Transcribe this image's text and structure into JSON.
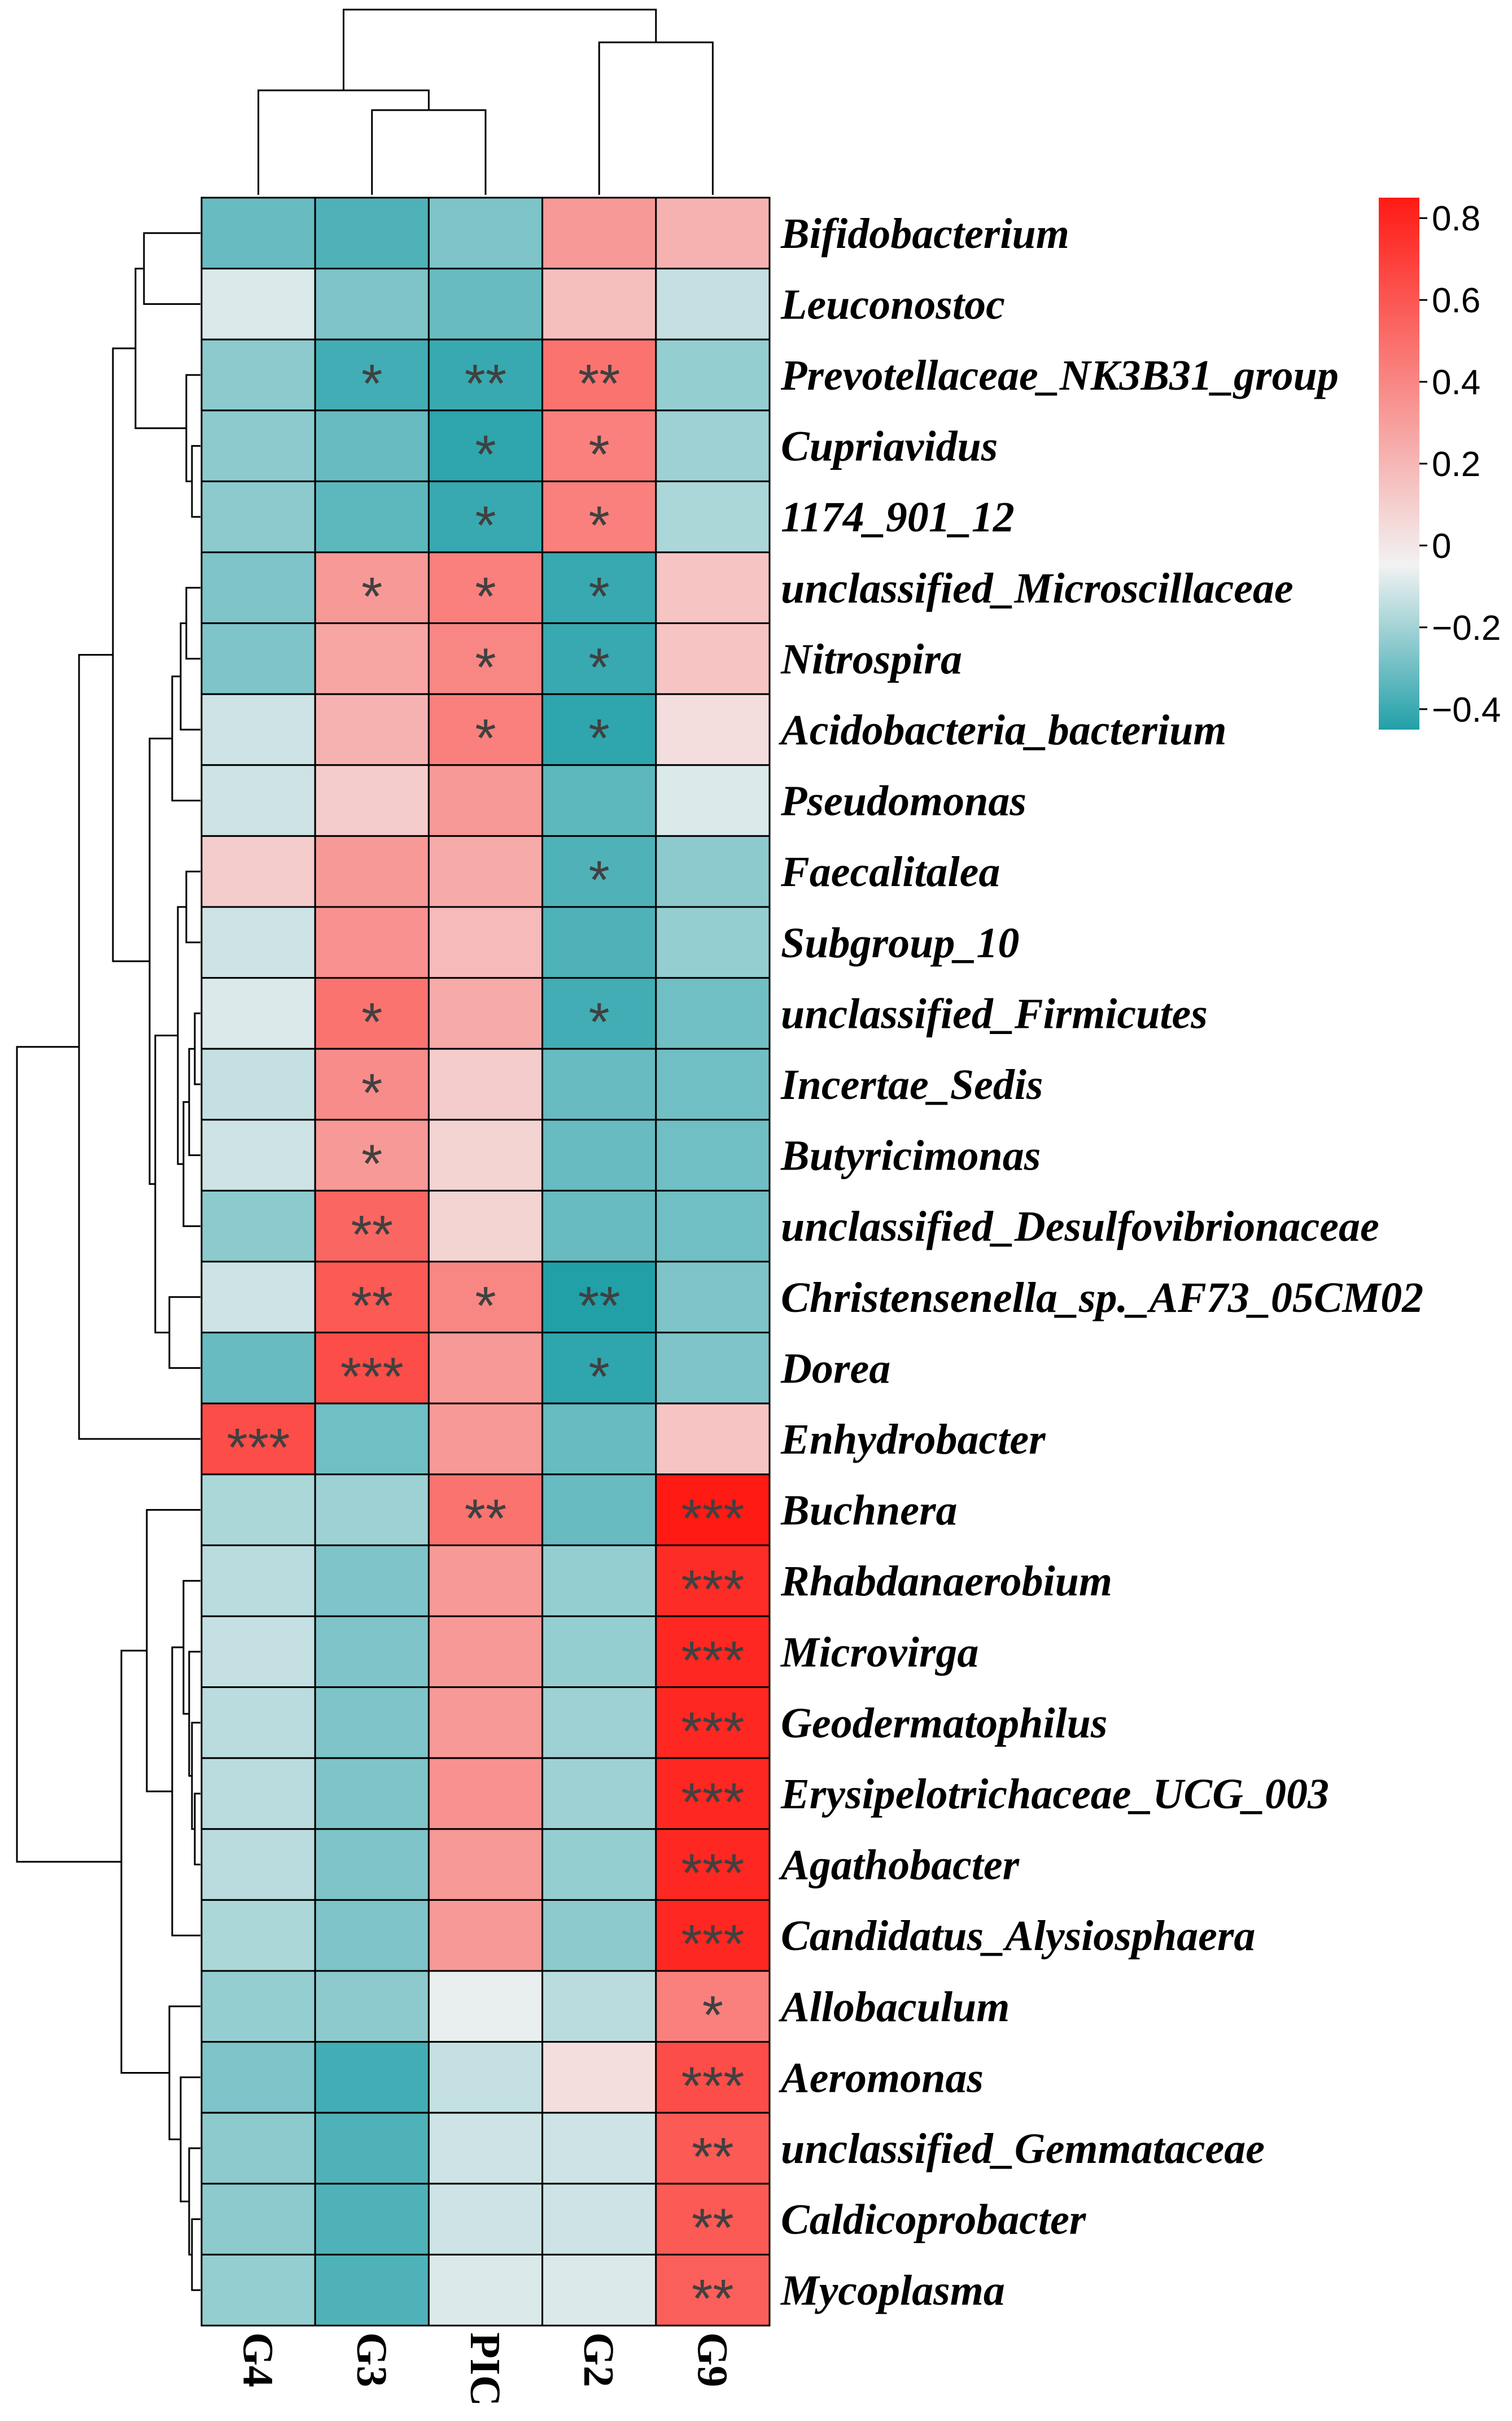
{
  "chart_data": {
    "type": "heatmap",
    "title": "",
    "columns": [
      "G4",
      "G3",
      "PIC",
      "G2",
      "G9"
    ],
    "rows": [
      {
        "name": "Bifidobacterium",
        "values": [
          -0.3,
          -0.35,
          -0.25,
          0.35,
          0.25
        ],
        "sig": [
          "",
          "",
          "",
          "",
          ""
        ]
      },
      {
        "name": "Leuconostoc",
        "values": [
          -0.05,
          -0.25,
          -0.3,
          0.2,
          -0.1
        ],
        "sig": [
          "",
          "",
          "",
          "",
          ""
        ]
      },
      {
        "name": "Prevotellaceae_NK3B31_group",
        "values": [
          -0.22,
          -0.38,
          -0.4,
          0.5,
          -0.2
        ],
        "sig": [
          "",
          "*",
          "**",
          "**",
          ""
        ]
      },
      {
        "name": "Cupriavidus",
        "values": [
          -0.22,
          -0.3,
          -0.42,
          0.45,
          -0.18
        ],
        "sig": [
          "",
          "",
          "*",
          "*",
          ""
        ]
      },
      {
        "name": "1174_901_12",
        "values": [
          -0.22,
          -0.32,
          -0.4,
          0.45,
          -0.15
        ],
        "sig": [
          "",
          "",
          "*",
          "*",
          ""
        ]
      },
      {
        "name": "unclassified_Microscillaceae",
        "values": [
          -0.25,
          0.35,
          0.45,
          -0.4,
          0.18
        ],
        "sig": [
          "",
          "*",
          "*",
          "*",
          ""
        ]
      },
      {
        "name": "Nitrospira",
        "values": [
          -0.25,
          0.3,
          0.42,
          -0.4,
          0.18
        ],
        "sig": [
          "",
          "",
          "*",
          "*",
          ""
        ]
      },
      {
        "name": "Acidobacteria_bacterium",
        "values": [
          -0.08,
          0.25,
          0.45,
          -0.42,
          0.08
        ],
        "sig": [
          "",
          "",
          "*",
          "*",
          ""
        ]
      },
      {
        "name": "Pseudomonas",
        "values": [
          -0.08,
          0.15,
          0.35,
          -0.32,
          -0.05
        ],
        "sig": [
          "",
          "",
          "",
          "",
          ""
        ]
      },
      {
        "name": "Faecalitalea",
        "values": [
          0.15,
          0.35,
          0.28,
          -0.35,
          -0.22
        ],
        "sig": [
          "",
          "",
          "",
          "*",
          ""
        ]
      },
      {
        "name": "Subgroup_10",
        "values": [
          -0.08,
          0.38,
          0.22,
          -0.35,
          -0.2
        ],
        "sig": [
          "",
          "",
          "",
          "",
          ""
        ]
      },
      {
        "name": "unclassified_Firmicutes",
        "values": [
          -0.05,
          0.5,
          0.28,
          -0.38,
          -0.28
        ],
        "sig": [
          "",
          "*",
          "",
          "*",
          ""
        ]
      },
      {
        "name": "Incertae_Sedis",
        "values": [
          -0.1,
          0.4,
          0.15,
          -0.3,
          -0.28
        ],
        "sig": [
          "",
          "*",
          "",
          "",
          ""
        ]
      },
      {
        "name": "Butyricimonas",
        "values": [
          -0.08,
          0.35,
          0.12,
          -0.3,
          -0.28
        ],
        "sig": [
          "",
          "*",
          "",
          "",
          ""
        ]
      },
      {
        "name": "unclassified_Desulfovibrionaceae",
        "values": [
          -0.22,
          0.55,
          0.12,
          -0.3,
          -0.28
        ],
        "sig": [
          "",
          "**",
          "",
          "",
          ""
        ]
      },
      {
        "name": "Christensenella_sp._AF73_05CM02",
        "values": [
          -0.08,
          0.6,
          0.42,
          -0.45,
          -0.25
        ],
        "sig": [
          "",
          "**",
          "*",
          "**",
          ""
        ]
      },
      {
        "name": "Dorea",
        "values": [
          -0.3,
          0.65,
          0.35,
          -0.42,
          -0.25
        ],
        "sig": [
          "",
          "***",
          "",
          "*",
          ""
        ]
      },
      {
        "name": "Enhydrobacter",
        "values": [
          0.65,
          -0.28,
          0.35,
          -0.3,
          0.18
        ],
        "sig": [
          "***",
          "",
          "",
          "",
          ""
        ]
      },
      {
        "name": "Buchnera",
        "values": [
          -0.15,
          -0.18,
          0.5,
          -0.3,
          0.85
        ],
        "sig": [
          "",
          "",
          "**",
          "",
          "***"
        ]
      },
      {
        "name": "Rhabdanaerobium",
        "values": [
          -0.12,
          -0.25,
          0.35,
          -0.2,
          0.78
        ],
        "sig": [
          "",
          "",
          "",
          "",
          "***"
        ]
      },
      {
        "name": "Microvirga",
        "values": [
          -0.1,
          -0.25,
          0.35,
          -0.2,
          0.8
        ],
        "sig": [
          "",
          "",
          "",
          "",
          "***"
        ]
      },
      {
        "name": "Geodermatophilus",
        "values": [
          -0.12,
          -0.25,
          0.35,
          -0.18,
          0.8
        ],
        "sig": [
          "",
          "",
          "",
          "",
          "***"
        ]
      },
      {
        "name": "Erysipelotrichaceae_UCG_003",
        "values": [
          -0.12,
          -0.25,
          0.38,
          -0.18,
          0.8
        ],
        "sig": [
          "",
          "",
          "",
          "",
          "***"
        ]
      },
      {
        "name": "Agathobacter",
        "values": [
          -0.12,
          -0.25,
          0.35,
          -0.2,
          0.8
        ],
        "sig": [
          "",
          "",
          "",
          "",
          "***"
        ]
      },
      {
        "name": "Candidatus_Alysiosphaera",
        "values": [
          -0.15,
          -0.25,
          0.35,
          -0.22,
          0.8
        ],
        "sig": [
          "",
          "",
          "",
          "",
          "***"
        ]
      },
      {
        "name": "Allobaculum",
        "values": [
          -0.2,
          -0.22,
          -0.02,
          -0.12,
          0.45
        ],
        "sig": [
          "",
          "",
          "",
          "",
          "*"
        ]
      },
      {
        "name": "Aeromonas",
        "values": [
          -0.25,
          -0.38,
          -0.1,
          0.08,
          0.65
        ],
        "sig": [
          "",
          "",
          "",
          "",
          "***"
        ]
      },
      {
        "name": "unclassified_Gemmataceae",
        "values": [
          -0.22,
          -0.35,
          -0.08,
          -0.08,
          0.6
        ],
        "sig": [
          "",
          "",
          "",
          "",
          "**"
        ]
      },
      {
        "name": "Caldicoprobacter",
        "values": [
          -0.22,
          -0.35,
          -0.08,
          -0.08,
          0.6
        ],
        "sig": [
          "",
          "",
          "",
          "",
          "**"
        ]
      },
      {
        "name": "Mycoplasma",
        "values": [
          -0.2,
          -0.35,
          -0.05,
          -0.05,
          0.58
        ],
        "sig": [
          "",
          "",
          "",
          "",
          "**"
        ]
      }
    ],
    "colorbar": {
      "range": [
        -0.45,
        0.85
      ],
      "ticks": [
        {
          "value": 0.8,
          "label": "0.8"
        },
        {
          "value": 0.6,
          "label": "0.6"
        },
        {
          "value": 0.4,
          "label": "0.4"
        },
        {
          "value": 0.2,
          "label": "0.2"
        },
        {
          "value": 0,
          "label": "0"
        },
        {
          "value": -0.2,
          "label": "−0.2"
        },
        {
          "value": -0.4,
          "label": "−0.4"
        }
      ],
      "low_color": "#21a0a8",
      "mid_color": "#f2f2f2",
      "high_color": "#ff1a14"
    }
  }
}
